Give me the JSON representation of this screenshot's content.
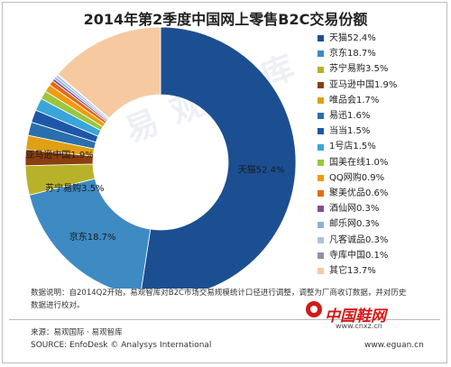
{
  "header": {
    "title": "2014年第2季度中国网上零售B2C交易份额"
  },
  "watermark": "易观智库",
  "footer": {
    "note": "数据说明：自2014Q2开始，易观智库对B2C市场交易规模统计口径进行调整，调整为厂商收订数据，并对历史数据进行校对。",
    "source_cn": "来源：易观国际 · 易观智库",
    "source_en": "SOURCE: EnfoDesk © Analysys International",
    "url": "www.eguan.cn"
  },
  "site_logo": {
    "name": "中国鞋网",
    "url": "www.cnxz.cn"
  },
  "chart_data": {
    "type": "pie",
    "title": "2014年第2季度中国网上零售B2C交易份额",
    "donut": true,
    "legend_position": "right",
    "labels": [
      "天猫",
      "京东",
      "苏宁易购",
      "亚马逊中国",
      "唯品会",
      "易迅",
      "当当",
      "1号店",
      "国美在线",
      "QQ网购",
      "聚美优品",
      "酒仙网",
      "邮乐网",
      "凡客诚品",
      "寺库中国",
      "其它"
    ],
    "values": [
      52.4,
      18.7,
      3.5,
      1.9,
      1.7,
      1.6,
      1.5,
      1.5,
      1.0,
      0.9,
      0.6,
      0.3,
      0.3,
      0.3,
      0.1,
      13.7
    ],
    "legend_labels": [
      "天猫52.4%",
      "京东18.7%",
      "苏宁易购3.5%",
      "亚马逊中国1.9%",
      "唯品会1.7%",
      "易迅1.6%",
      "当当1.5%",
      "1号店1.5%",
      "国美在线1.0%",
      "QQ网购0.9%",
      "聚美优品0.6%",
      "酒仙网0.3%",
      "邮乐网0.3%",
      "凡客诚品0.3%",
      "寺库中国0.1%",
      "其它13.7%"
    ],
    "colors": [
      "#1c4f91",
      "#3e8ac3",
      "#b8b22a",
      "#8a3f0e",
      "#e0a015",
      "#2a6fae",
      "#1e57a8",
      "#3aa5d8",
      "#9ac63e",
      "#ef9b10",
      "#e36a18",
      "#7d4f95",
      "#8fb0d9",
      "#aec2dd",
      "#8f8fa8",
      "#f6c9a0"
    ],
    "slice_labels": [
      {
        "text": "天猫52.4%"
      },
      {
        "text": "京东18.7%"
      },
      {
        "text": "苏宁易购3.5%"
      },
      {
        "text": "亚马逊中国1.9%"
      }
    ]
  }
}
